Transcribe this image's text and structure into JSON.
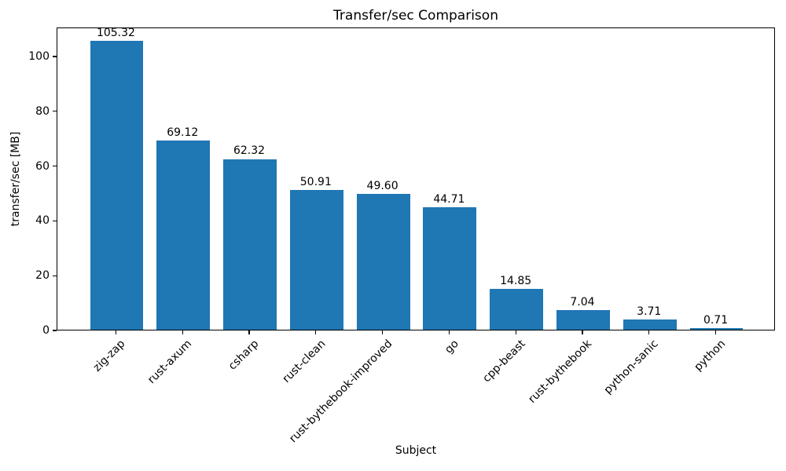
{
  "chart_data": {
    "type": "bar",
    "title": "Transfer/sec Comparison",
    "xlabel": "Subject",
    "ylabel": "transfer/sec [MB]",
    "categories": [
      "zig-zap",
      "rust-axum",
      "csharp",
      "rust-clean",
      "rust-bythebook-improved",
      "go",
      "cpp-beast",
      "rust-bythebook",
      "python-sanic",
      "python"
    ],
    "values": [
      105.32,
      69.12,
      62.32,
      50.91,
      49.6,
      44.71,
      14.85,
      7.04,
      3.71,
      0.71
    ],
    "value_labels": [
      "105.32",
      "69.12",
      "62.32",
      "50.91",
      "49.60",
      "44.71",
      "14.85",
      "7.04",
      "3.71",
      "0.71"
    ],
    "yticks": [
      0,
      20,
      40,
      60,
      80,
      100
    ],
    "ylim": [
      0,
      110.6
    ],
    "xlim": [
      -0.89,
      9.89
    ],
    "bar_color": "#1f77b4",
    "grid": false,
    "legend": "none",
    "x_tick_rotation_deg": 45
  }
}
